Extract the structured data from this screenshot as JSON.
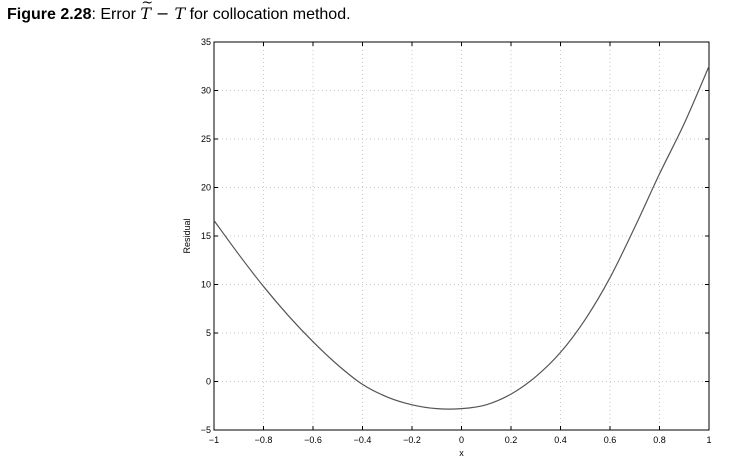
{
  "caption": {
    "label": "Figure 2.28",
    "sep": ": ",
    "prefix": "Error ",
    "math_T1": "T",
    "math_tilde": "~",
    "math_minus": "−",
    "math_T2": "T",
    "suffix": " for collocation method."
  },
  "chart_data": {
    "type": "line",
    "title": "",
    "xlabel": "x",
    "ylabel": "Residual",
    "xlim": [
      -1,
      1
    ],
    "ylim": [
      -5,
      35
    ],
    "xticks": [
      -1,
      -0.8,
      -0.6,
      -0.4,
      -0.2,
      0,
      0.2,
      0.4,
      0.6,
      0.8,
      1
    ],
    "xtick_labels": [
      "−1",
      "−0.8",
      "−0.6",
      "−0.4",
      "−0.2",
      "0",
      "0.2",
      "0.4",
      "0.6",
      "0.8",
      "1"
    ],
    "yticks": [
      -5,
      0,
      5,
      10,
      15,
      20,
      25,
      30,
      35
    ],
    "ytick_labels": [
      "−5",
      "0",
      "5",
      "10",
      "15",
      "20",
      "25",
      "30",
      "35"
    ],
    "grid": true,
    "series": [
      {
        "x": [
          -1,
          -0.9,
          -0.8,
          -0.7,
          -0.6,
          -0.5,
          -0.4,
          -0.3,
          -0.2,
          -0.1,
          0,
          0.1,
          0.2,
          0.3,
          0.4,
          0.5,
          0.6,
          0.7,
          0.8,
          0.9,
          1
        ],
        "y": [
          16.6,
          13.1,
          9.8,
          6.8,
          4.1,
          1.7,
          -0.3,
          -1.6,
          -2.4,
          -2.8,
          -2.8,
          -2.4,
          -1.3,
          0.5,
          3.0,
          6.4,
          10.7,
          15.9,
          21.4,
          26.6,
          32.5
        ]
      }
    ],
    "colors": {
      "line": "#555555",
      "axes": "#000000",
      "grid": "#c8c8c8"
    }
  }
}
